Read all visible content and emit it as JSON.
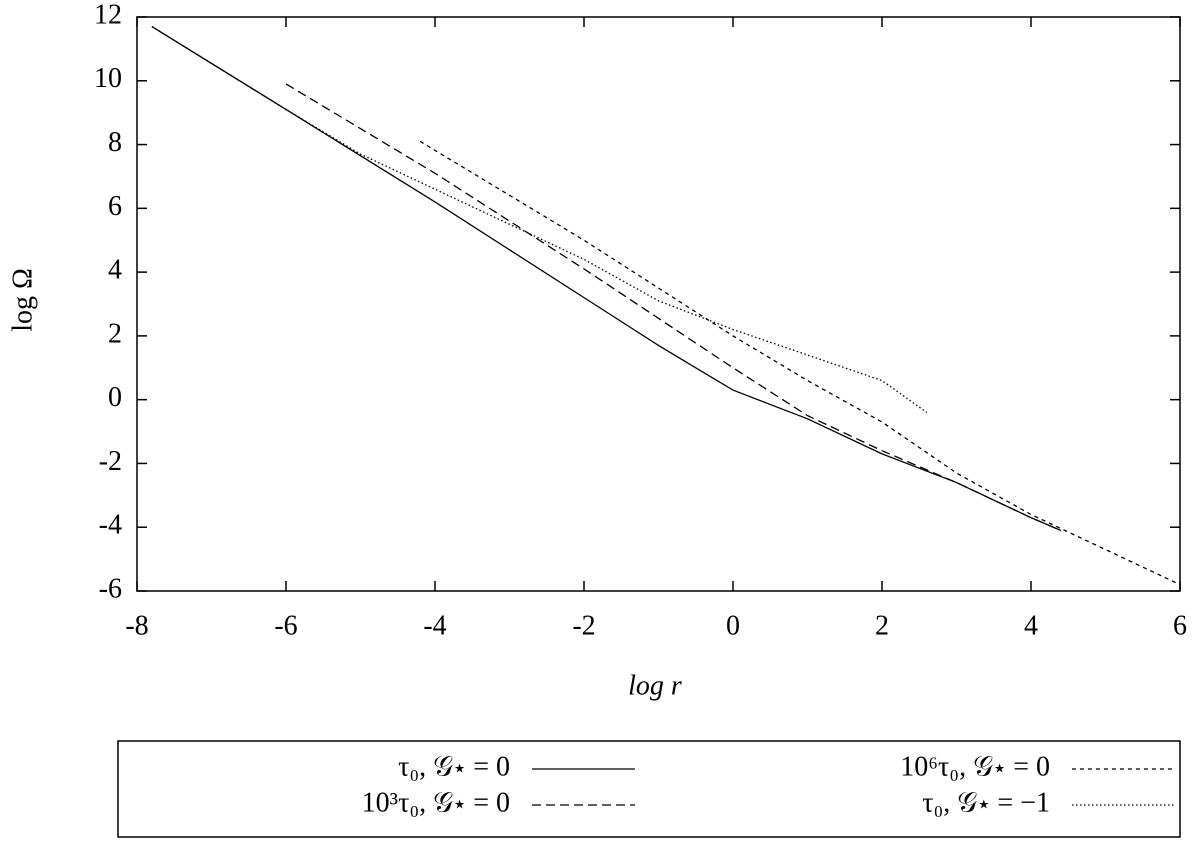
{
  "chart_data": {
    "type": "line",
    "xlabel": "log r",
    "ylabel": "log Ω",
    "xlim": [
      -8,
      6
    ],
    "xticks": [
      -8,
      -6,
      -4,
      -2,
      0,
      2,
      4,
      6
    ],
    "ylim": [
      -6,
      12
    ],
    "yticks": [
      -6,
      -4,
      -2,
      0,
      2,
      4,
      6,
      8,
      10,
      12
    ],
    "grid": false,
    "series": [
      {
        "name": "τ₀, 𝒢⋆ = 0",
        "color": "#000000",
        "dash": "solid",
        "x": [
          -7.8,
          -6,
          -4,
          -2,
          -1,
          -0.5,
          0,
          1,
          2,
          3,
          4,
          4.4
        ],
        "values": [
          11.7,
          9.1,
          6.2,
          3.2,
          1.7,
          1.0,
          0.3,
          -0.6,
          -1.7,
          -2.6,
          -3.7,
          -4.1
        ]
      },
      {
        "name": "10³τ₀, 𝒢⋆ = 0",
        "color": "#000000",
        "dash": "dashed",
        "x": [
          -6,
          -4,
          -2,
          0,
          1,
          2,
          3,
          4,
          4.4
        ],
        "values": [
          9.9,
          7.1,
          4.1,
          1.0,
          -0.5,
          -1.6,
          -2.6,
          -3.7,
          -4.1
        ]
      },
      {
        "name": "10⁶τ₀, 𝒢⋆ = 0",
        "color": "#000000",
        "dash": "short-dashed",
        "x": [
          -4.2,
          -2,
          0,
          1,
          2,
          3,
          4,
          5,
          6
        ],
        "values": [
          8.1,
          5.0,
          2.0,
          0.6,
          -0.7,
          -2.3,
          -3.6,
          -4.7,
          -5.8
        ]
      },
      {
        "name": "τ₀, 𝒢⋆ = −1",
        "color": "#000000",
        "dash": "dotted",
        "x": [
          -7.8,
          -6,
          -5,
          -4,
          -3,
          -2,
          -1,
          0,
          1,
          2,
          2.6
        ],
        "values": [
          11.7,
          9.1,
          7.7,
          6.6,
          5.5,
          4.4,
          3.1,
          2.2,
          1.4,
          0.6,
          -0.4
        ]
      }
    ]
  }
}
